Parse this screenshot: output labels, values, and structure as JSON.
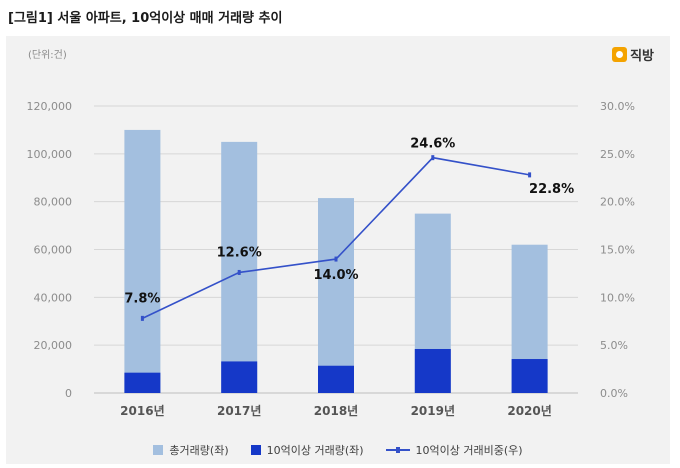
{
  "figure": {
    "title": "[그림1] 서울 아파트, 10억이상 매매 거래량 추이",
    "unit_note": "(단위:건)",
    "brand": "직방",
    "brand_icon": "house-logo-icon"
  },
  "colors": {
    "total_bar": "#a3bfdf",
    "premium_bar": "#1538c8",
    "ratio_line": "#3451c9",
    "panel_bg": "#f2f2f2",
    "grid": "#d7d7d7"
  },
  "chart_data": {
    "type": "bar",
    "categories": [
      "2016년",
      "2017년",
      "2018년",
      "2019년",
      "2020년"
    ],
    "series": [
      {
        "name": "총거래량(좌)",
        "type": "bar",
        "axis": "left",
        "values": [
          110000,
          105000,
          81500,
          75000,
          62000
        ]
      },
      {
        "name": "10억이상 거래량(좌)",
        "type": "bar",
        "axis": "left",
        "values": [
          8500,
          13200,
          11400,
          18400,
          14200
        ]
      },
      {
        "name": "10억이상 거래비중(우)",
        "type": "line",
        "axis": "right",
        "values": [
          7.8,
          12.6,
          14.0,
          24.6,
          22.8
        ],
        "labels": [
          "7.8%",
          "12.6%",
          "14.0%",
          "24.6%",
          "22.8%"
        ]
      }
    ],
    "y_left": {
      "min": 0,
      "max": 120000,
      "ticks": [
        "0",
        "20,000",
        "40,000",
        "60,000",
        "80,000",
        "100,000",
        "120,000"
      ]
    },
    "y_right": {
      "min": 0,
      "max": 30,
      "ticks": [
        "0.0%",
        "5.0%",
        "10.0%",
        "15.0%",
        "20.0%",
        "25.0%",
        "30.0%"
      ]
    },
    "grid": true,
    "legend_position": "bottom"
  }
}
